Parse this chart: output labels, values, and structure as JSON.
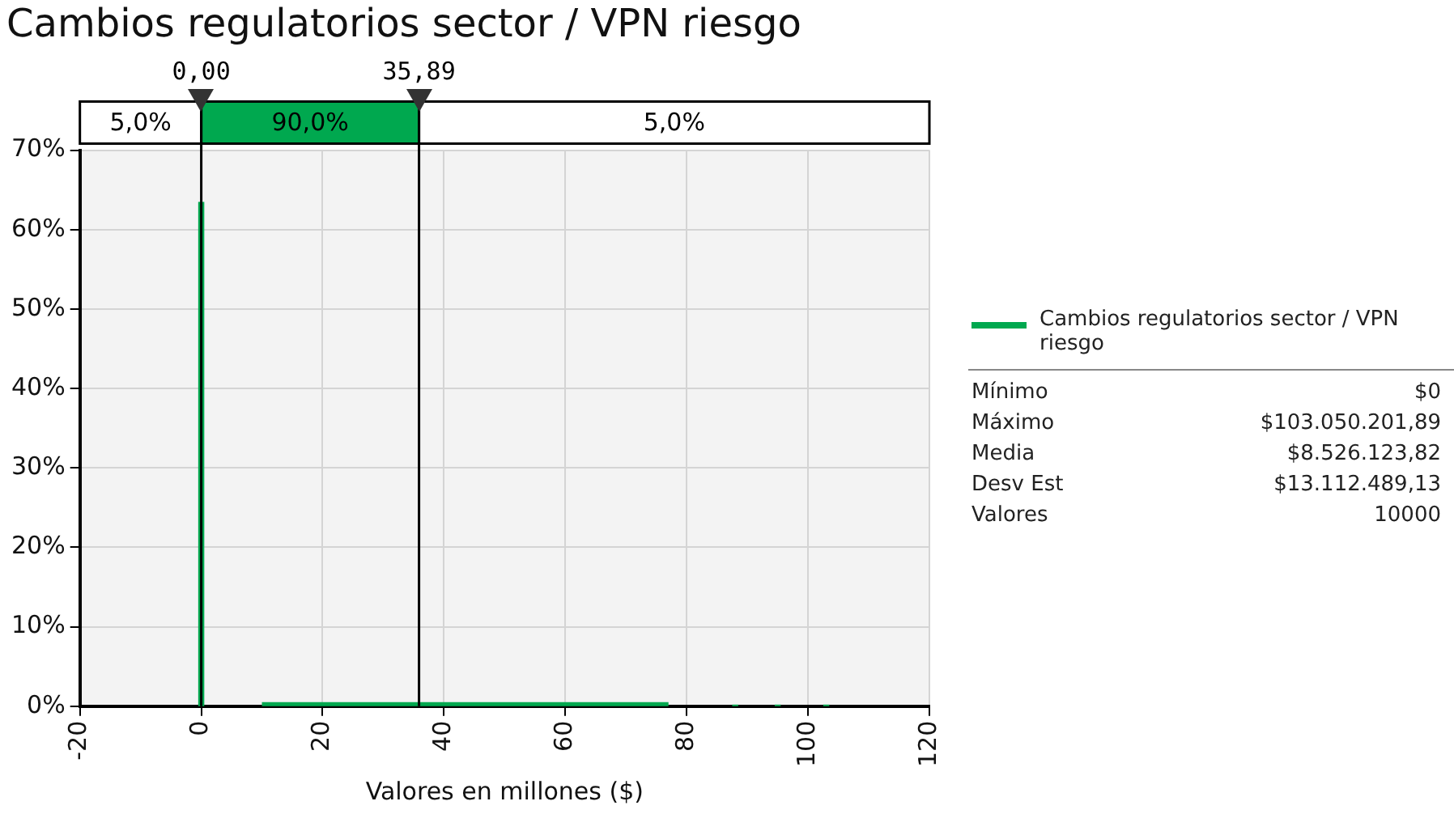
{
  "chart_data": {
    "type": "histogram",
    "title": "Cambios regulatorios sector / VPN riesgo",
    "xlabel": "Valores en millones ($)",
    "bins": [
      -0.5,
      0.5,
      10,
      77,
      87.5,
      88.5,
      94.5,
      95.5,
      102.5,
      103.5
    ],
    "series": [
      {
        "name": "Cambios regulatorios sector / VPN riesgo",
        "color": "#00a84f",
        "values": [
          63.5,
          0,
          0.5,
          0,
          0.2,
          0,
          0.2,
          0,
          0.2
        ]
      }
    ],
    "xlim": [
      -20,
      120
    ],
    "xticks": [
      -20,
      0,
      20,
      40,
      60,
      80,
      100,
      120
    ],
    "ylim": [
      0,
      70
    ],
    "yticks": [
      {
        "value": 0,
        "label": "0%"
      },
      {
        "value": 10,
        "label": "10%"
      },
      {
        "value": 20,
        "label": "20%"
      },
      {
        "value": 30,
        "label": "30%"
      },
      {
        "value": 40,
        "label": "40%"
      },
      {
        "value": 50,
        "label": "50%"
      },
      {
        "value": 60,
        "label": "60%"
      },
      {
        "value": 70,
        "label": "70%"
      }
    ],
    "ref_lines": [
      {
        "axis": "x",
        "value": 0,
        "label": "0,00",
        "color": "#000000"
      },
      {
        "axis": "x",
        "value": 35.89,
        "label": "35,89",
        "color": "#000000"
      }
    ],
    "annotations": [
      "5,0%",
      "90,0%",
      "5,0%",
      "Mínimo",
      "$0",
      "Máximo",
      "$103.050.201,89",
      "Media",
      "$8.526.123,82",
      "Desv Est",
      "$13.112.489,13",
      "Valores",
      "10000"
    ],
    "grid": true,
    "legend": "right"
  }
}
